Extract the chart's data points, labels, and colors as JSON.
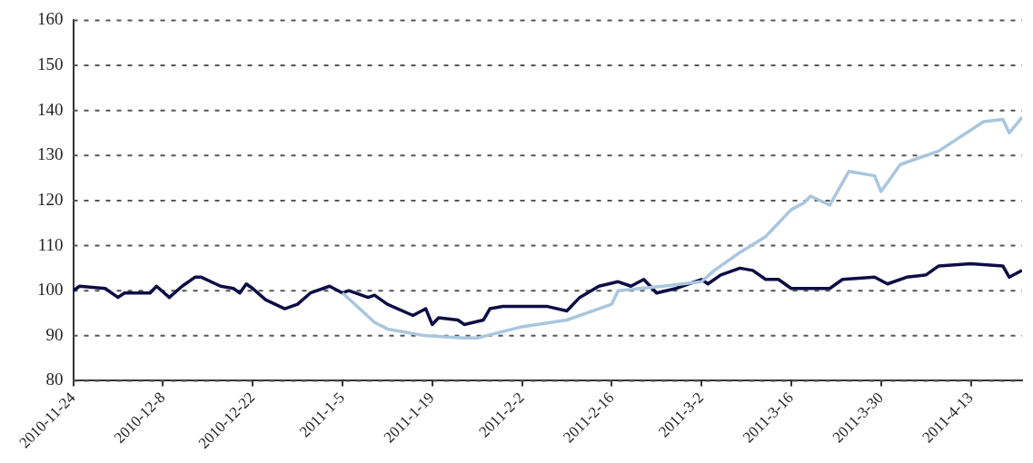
{
  "chart_data": {
    "type": "line",
    "series": [
      {
        "color": "#a9c6de",
        "x": [
          "2011-01-05",
          "2011-01-10",
          "2011-01-12",
          "2011-01-18",
          "2011-01-24",
          "2011-01-26",
          "2011-02-02",
          "2011-02-09",
          "2011-02-16",
          "2011-02-17",
          "2011-02-24",
          "2011-03-02",
          "2011-03-04",
          "2011-03-08",
          "2011-03-12",
          "2011-03-16",
          "2011-03-18",
          "2011-03-19",
          "2011-03-22",
          "2011-03-25",
          "2011-03-29",
          "2011-03-30",
          "2011-04-02",
          "2011-04-08",
          "2011-04-15",
          "2011-04-18",
          "2011-04-19",
          "2011-04-21"
        ],
        "values": [
          99.5,
          93,
          91.5,
          90,
          89.5,
          89.5,
          92,
          93.5,
          97,
          100,
          101,
          102,
          104.5,
          108.5,
          112,
          118,
          119.5,
          121,
          119,
          126.5,
          125.5,
          122,
          128,
          131,
          137.5,
          138,
          135,
          138.5
        ]
      },
      {
        "color": "#0d0d45",
        "x": [
          "2010-11-24",
          "2010-11-25",
          "2010-11-29",
          "2010-12-01",
          "2010-12-02",
          "2010-12-06",
          "2010-12-07",
          "2010-12-09",
          "2010-12-11",
          "2010-12-13",
          "2010-12-14",
          "2010-12-17",
          "2010-12-19",
          "2010-12-20",
          "2010-12-21",
          "2010-12-22",
          "2010-12-24",
          "2010-12-27",
          "2010-12-29",
          "2010-12-31",
          "2011-01-03",
          "2011-01-05",
          "2011-01-06",
          "2011-01-09",
          "2011-01-10",
          "2011-01-12",
          "2011-01-16",
          "2011-01-18",
          "2011-01-19",
          "2011-01-20",
          "2011-01-23",
          "2011-01-24",
          "2011-01-27",
          "2011-01-28",
          "2011-01-30",
          "2011-02-06",
          "2011-02-09",
          "2011-02-11",
          "2011-02-14",
          "2011-02-17",
          "2011-02-19",
          "2011-02-21",
          "2011-02-23",
          "2011-02-26",
          "2011-03-02",
          "2011-03-03",
          "2011-03-05",
          "2011-03-08",
          "2011-03-10",
          "2011-03-12",
          "2011-03-14",
          "2011-03-16",
          "2011-03-19",
          "2011-03-22",
          "2011-03-24",
          "2011-03-29",
          "2011-03-31",
          "2011-04-03",
          "2011-04-06",
          "2011-04-08",
          "2011-04-13",
          "2011-04-18",
          "2011-04-19",
          "2011-04-21"
        ],
        "values": [
          100,
          101,
          100.5,
          98.5,
          99.5,
          99.5,
          101,
          98.5,
          101,
          103,
          103,
          101,
          100.5,
          99.5,
          101.5,
          100.5,
          98,
          96,
          97,
          99.5,
          101,
          99.5,
          100,
          98.5,
          99,
          97,
          94.5,
          96,
          92.5,
          94,
          93.5,
          92.5,
          93.5,
          96,
          96.5,
          96.5,
          95.5,
          98.5,
          101,
          102,
          101,
          102.5,
          99.5,
          100.5,
          102.5,
          101.5,
          103.5,
          105,
          104.5,
          102.5,
          102.5,
          100.5,
          100.5,
          100.5,
          102.5,
          103,
          101.5,
          103,
          103.5,
          105.5,
          106,
          105.5,
          103,
          104.5
        ]
      }
    ],
    "xlim": [
      "2010-11-24",
      "2011-04-21"
    ],
    "xticks": [
      {
        "value": "2010-11-24",
        "label": "2010-11-24"
      },
      {
        "value": "2010-12-08",
        "label": "2010-12-8"
      },
      {
        "value": "2010-12-22",
        "label": "2010-12-22"
      },
      {
        "value": "2011-01-05",
        "label": "2011-1-5"
      },
      {
        "value": "2011-01-19",
        "label": "2011-1-19"
      },
      {
        "value": "2011-02-02",
        "label": "2011-2-2"
      },
      {
        "value": "2011-02-16",
        "label": "2011-2-16"
      },
      {
        "value": "2011-03-02",
        "label": "2011-3-2"
      },
      {
        "value": "2011-03-16",
        "label": "2011-3-16"
      },
      {
        "value": "2011-03-30",
        "label": "2011-3-30"
      },
      {
        "value": "2011-04-13",
        "label": "2011-4-13"
      }
    ],
    "ylim": [
      80,
      160
    ],
    "yticks": [
      80,
      90,
      100,
      110,
      120,
      130,
      140,
      150,
      160
    ],
    "grid": "y"
  }
}
